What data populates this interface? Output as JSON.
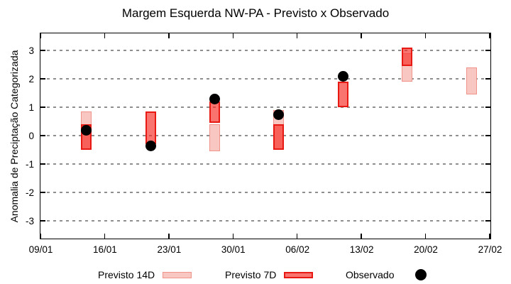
{
  "chart_data": {
    "type": "bar",
    "subtype": "forecast-range-boxes-with-observed-scatter",
    "title": "Margem Esquerda NW-PA - Previsto x Observado",
    "xlabel": "",
    "ylabel": "Anomalia de Preciptação Categorizada",
    "ylim": [
      -3.6,
      3.6
    ],
    "yticks": [
      3,
      2,
      1,
      0,
      -1,
      -2,
      -3
    ],
    "x_tick_labels": [
      "09/01",
      "16/01",
      "23/01",
      "30/01",
      "06/02",
      "13/02",
      "20/02",
      "27/02"
    ],
    "x_tick_days": [
      0,
      7,
      14,
      21,
      28,
      35,
      42,
      49
    ],
    "x_span_days": 49,
    "grid": "horizontal-dashed-gray",
    "legend_position": "bottom",
    "series": [
      {
        "name": "Previsto 14D",
        "type": "range-box",
        "fill": "#f9c7c2",
        "border": "#f0938b",
        "points": [
          {
            "date": "14/01",
            "day": 5,
            "low": -0.5,
            "high": 0.85
          },
          {
            "date": "28/01",
            "day": 19,
            "low": -0.55,
            "high": 0.4
          },
          {
            "date": "04/02",
            "day": 26,
            "low": -0.5,
            "high": 0.9
          },
          {
            "date": "18/02",
            "day": 40,
            "low": 1.9,
            "high": 2.9
          },
          {
            "date": "25/02",
            "day": 47,
            "low": 1.45,
            "high": 2.4
          }
        ]
      },
      {
        "name": "Previsto 7D",
        "type": "range-box",
        "fill": "rgba(247,42,34,0.65)",
        "border": "#e81812",
        "points": [
          {
            "date": "14/01",
            "day": 5,
            "low": -0.5,
            "high": 0.4
          },
          {
            "date": "21/01",
            "day": 12,
            "low": -0.3,
            "high": 0.85
          },
          {
            "date": "28/01",
            "day": 19,
            "low": 0.45,
            "high": 1.2
          },
          {
            "date": "04/02",
            "day": 26,
            "low": -0.5,
            "high": 0.4
          },
          {
            "date": "11/02",
            "day": 33,
            "low": 1.0,
            "high": 1.9
          },
          {
            "date": "18/02",
            "day": 40,
            "low": 2.45,
            "high": 3.1
          }
        ]
      },
      {
        "name": "Observado",
        "type": "scatter",
        "fill": "#000000",
        "points": [
          {
            "date": "14/01",
            "day": 5,
            "value": 0.2
          },
          {
            "date": "21/01",
            "day": 12,
            "value": -0.35
          },
          {
            "date": "28/01",
            "day": 19,
            "value": 1.3
          },
          {
            "date": "04/02",
            "day": 26,
            "value": 0.75
          },
          {
            "date": "11/02",
            "day": 33,
            "value": 2.1
          }
        ]
      }
    ],
    "colors": {
      "previsto_14d_fill": "#f9c7c2",
      "previsto_14d_border": "#f0938b",
      "previsto_7d_fill": "#fa746f",
      "previsto_7d_border": "#e81812",
      "observado": "#000000",
      "grid": "#8f8f8f",
      "axis": "#000000"
    }
  }
}
